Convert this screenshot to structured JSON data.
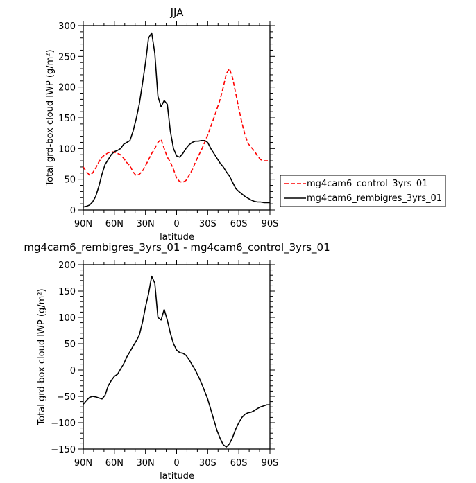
{
  "chart_data": [
    {
      "type": "line",
      "title": "JJA",
      "xlabel": "latitude",
      "ylabel": "Total grd-box cloud IWP (g/m²)",
      "xlim": [
        90,
        -90
      ],
      "ylim": [
        0,
        300
      ],
      "x_ticks": [
        90,
        60,
        30,
        0,
        -30,
        -60,
        -90
      ],
      "x_tick_labels": [
        "90N",
        "60N",
        "30N",
        "0",
        "30S",
        "60S",
        "90S"
      ],
      "y_ticks": [
        0,
        50,
        100,
        150,
        200,
        250,
        300
      ],
      "y_tick_labels": [
        "0",
        "50",
        "100",
        "150",
        "200",
        "250",
        "300"
      ],
      "legend_position": "outside-right",
      "series": [
        {
          "name": "mg4cam6_control_3yrs_01",
          "color": "#ff0000",
          "dash": "dashed",
          "x": [
            90,
            87,
            84,
            81,
            78,
            75,
            72,
            69,
            66,
            63,
            60,
            57,
            54,
            51,
            48,
            45,
            42,
            39,
            36,
            33,
            30,
            27,
            24,
            21,
            18,
            15,
            12,
            9,
            6,
            3,
            0,
            -3,
            -6,
            -9,
            -12,
            -15,
            -18,
            -21,
            -24,
            -27,
            -30,
            -33,
            -36,
            -39,
            -42,
            -45,
            -48,
            -51,
            -54,
            -57,
            -60,
            -63,
            -66,
            -69,
            -72,
            -75,
            -78,
            -81,
            -84,
            -87,
            -90
          ],
          "y": [
            70,
            62,
            57,
            60,
            68,
            78,
            86,
            90,
            93,
            95,
            94,
            92,
            90,
            84,
            77,
            72,
            62,
            56,
            58,
            63,
            72,
            82,
            92,
            100,
            110,
            115,
            100,
            86,
            78,
            66,
            52,
            46,
            45,
            48,
            56,
            65,
            77,
            88,
            98,
            110,
            122,
            136,
            150,
            165,
            180,
            200,
            222,
            230,
            215,
            190,
            165,
            142,
            122,
            108,
            102,
            96,
            88,
            82,
            80,
            80,
            80
          ]
        },
        {
          "name": "mg4cam6_rembigres_3yrs_01",
          "color": "#000000",
          "dash": "solid",
          "x": [
            90,
            87,
            84,
            81,
            78,
            75,
            72,
            69,
            66,
            63,
            60,
            57,
            54,
            51,
            48,
            45,
            42,
            39,
            36,
            33,
            30,
            27,
            24,
            21,
            18,
            15,
            12,
            9,
            6,
            3,
            0,
            -3,
            -6,
            -9,
            -12,
            -15,
            -18,
            -21,
            -24,
            -27,
            -30,
            -33,
            -36,
            -39,
            -42,
            -45,
            -48,
            -51,
            -54,
            -57,
            -60,
            -63,
            -66,
            -69,
            -72,
            -75,
            -78,
            -81,
            -84,
            -87,
            -90
          ],
          "y": [
            5,
            6,
            8,
            13,
            22,
            38,
            58,
            74,
            82,
            90,
            95,
            97,
            100,
            107,
            110,
            113,
            128,
            148,
            172,
            205,
            240,
            280,
            288,
            255,
            185,
            168,
            178,
            172,
            128,
            100,
            88,
            86,
            92,
            100,
            106,
            110,
            112,
            112,
            113,
            113,
            110,
            100,
            92,
            84,
            76,
            70,
            62,
            55,
            45,
            35,
            30,
            26,
            22,
            19,
            16,
            14,
            13,
            13,
            12,
            12,
            12
          ]
        }
      ]
    },
    {
      "type": "line",
      "title": "mg4cam6_rembigres_3yrs_01 - mg4cam6_control_3yrs_01",
      "xlabel": "latitude",
      "ylabel": "Total grd-box cloud IWP (g/m²)",
      "xlim": [
        90,
        -90
      ],
      "ylim": [
        -150,
        200
      ],
      "x_ticks": [
        90,
        60,
        30,
        0,
        -30,
        -60,
        -90
      ],
      "x_tick_labels": [
        "90N",
        "60N",
        "30N",
        "0",
        "30S",
        "60S",
        "90S"
      ],
      "y_ticks": [
        -150,
        -100,
        -50,
        0,
        50,
        100,
        150,
        200
      ],
      "y_tick_labels": [
        "−150",
        "−100",
        "−50",
        "0",
        "50",
        "100",
        "150",
        "200"
      ],
      "series": [
        {
          "color": "#000000",
          "dash": "solid",
          "x": [
            90,
            87,
            84,
            81,
            78,
            75,
            72,
            69,
            66,
            63,
            60,
            57,
            54,
            51,
            48,
            45,
            42,
            39,
            36,
            33,
            30,
            27,
            24,
            21,
            18,
            15,
            12,
            9,
            6,
            3,
            0,
            -3,
            -6,
            -9,
            -12,
            -15,
            -18,
            -21,
            -24,
            -27,
            -30,
            -33,
            -36,
            -39,
            -42,
            -45,
            -48,
            -51,
            -54,
            -57,
            -60,
            -63,
            -66,
            -69,
            -72,
            -75,
            -78,
            -81,
            -84,
            -87,
            -90
          ],
          "y": [
            -65,
            -58,
            -52,
            -50,
            -51,
            -53,
            -55,
            -48,
            -30,
            -20,
            -12,
            -8,
            2,
            12,
            25,
            35,
            45,
            55,
            66,
            90,
            120,
            145,
            178,
            165,
            100,
            95,
            115,
            95,
            70,
            50,
            38,
            33,
            32,
            28,
            20,
            10,
            0,
            -12,
            -25,
            -40,
            -55,
            -75,
            -95,
            -115,
            -130,
            -142,
            -146,
            -140,
            -128,
            -112,
            -100,
            -90,
            -84,
            -81,
            -80,
            -77,
            -73,
            -70,
            -68,
            -66,
            -66
          ]
        }
      ]
    }
  ]
}
